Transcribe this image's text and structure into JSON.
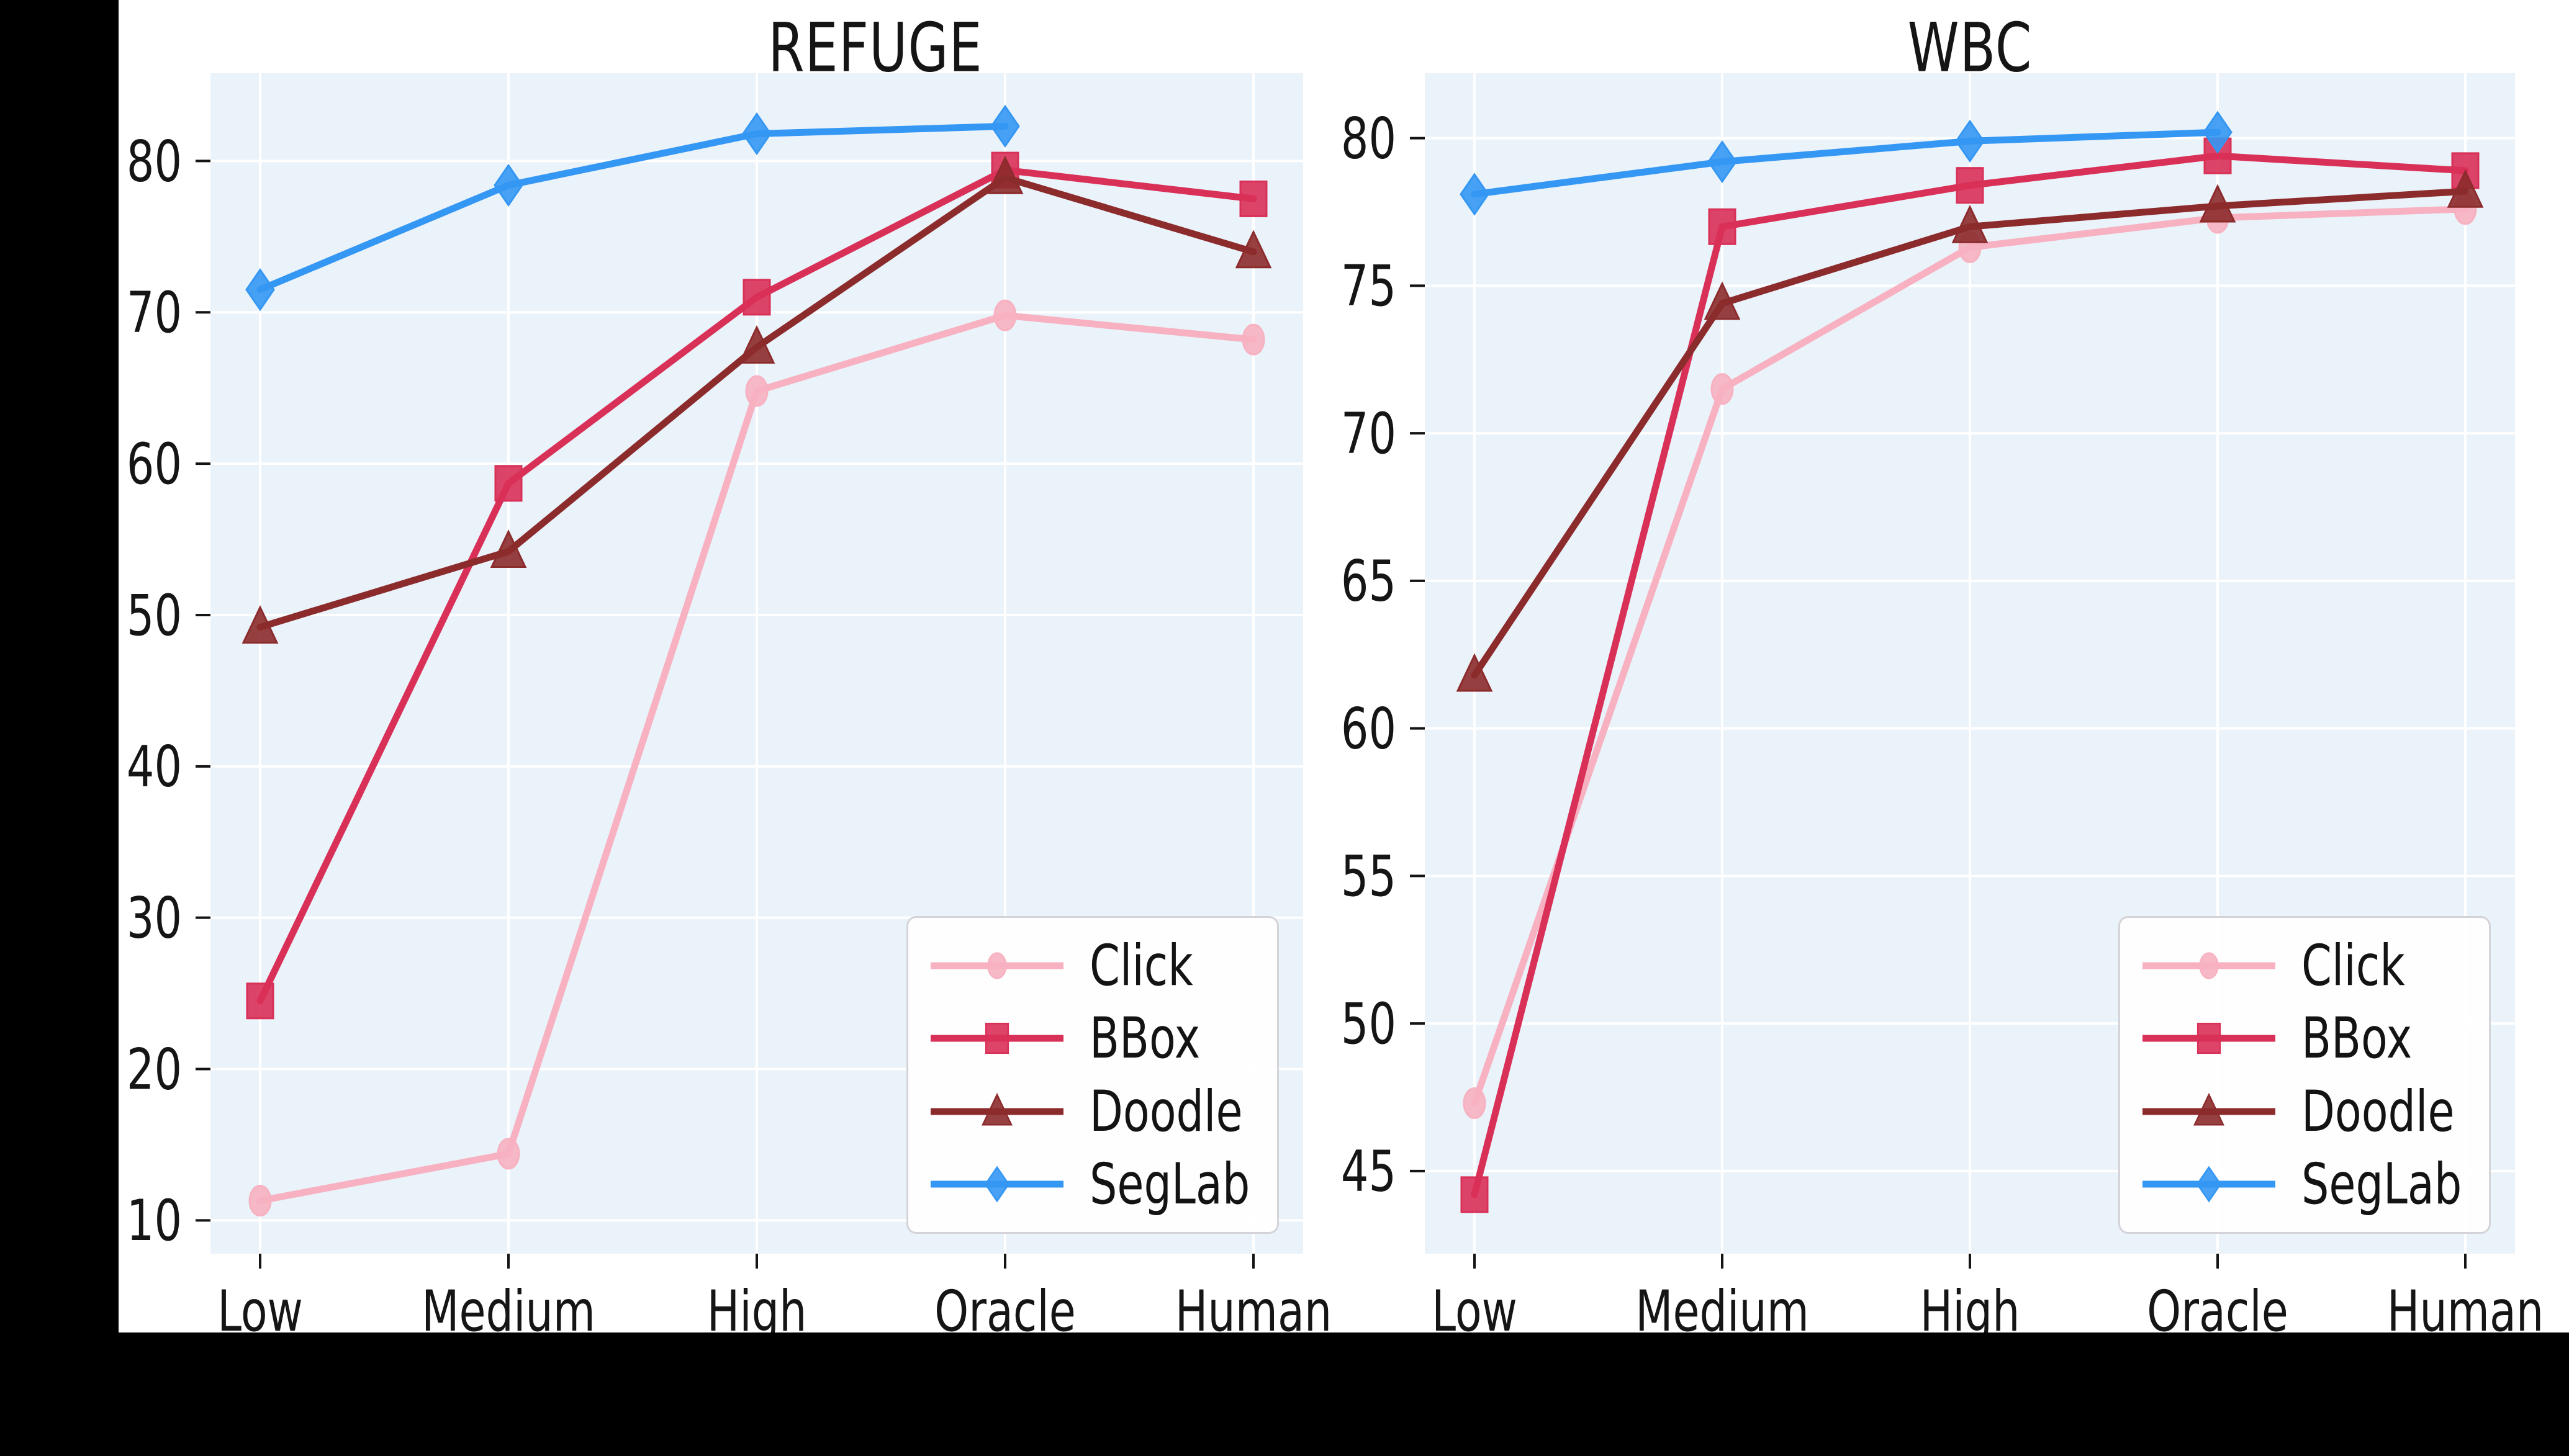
{
  "figure": {
    "canvas_color": "#000000",
    "panel_color": "#ffffff",
    "plot_background": "#EAF2FA",
    "gridline_color": "#ffffff",
    "text_color": "#151515"
  },
  "chart_data": [
    {
      "type": "line",
      "title": "REFUGE",
      "categories": [
        "Low",
        "Medium",
        "High",
        "Oracle",
        "Human"
      ],
      "xlabel": "",
      "ylabel": "",
      "ylim": [
        7.8,
        85.8
      ],
      "yticks": [
        10,
        20,
        30,
        40,
        50,
        60,
        70,
        80
      ],
      "grid": true,
      "legend_position": "lower right",
      "series": [
        {
          "name": "Click",
          "marker": "circle",
          "color": "#F7B1C0",
          "values": [
            11.3,
            14.4,
            64.8,
            69.8,
            68.2
          ]
        },
        {
          "name": "BBox",
          "marker": "square",
          "color": "#D93058",
          "values": [
            24.5,
            58.7,
            71.0,
            79.4,
            77.5
          ]
        },
        {
          "name": "Doodle",
          "marker": "triangle",
          "color": "#8C2B2C",
          "values": [
            49.2,
            54.2,
            67.7,
            78.9,
            74.0
          ]
        },
        {
          "name": "SegLab",
          "marker": "diamond",
          "color": "#3497F3",
          "values": [
            71.5,
            78.4,
            81.8,
            82.3,
            null
          ]
        }
      ]
    },
    {
      "type": "line",
      "title": "WBC",
      "categories": [
        "Low",
        "Medium",
        "High",
        "Oracle",
        "Human"
      ],
      "xlabel": "",
      "ylabel": "",
      "ylim": [
        42.2,
        82.2
      ],
      "yticks": [
        45,
        50,
        55,
        60,
        65,
        70,
        75,
        80
      ],
      "grid": true,
      "legend_position": "lower right",
      "series": [
        {
          "name": "Click",
          "marker": "circle",
          "color": "#F7B1C0",
          "values": [
            47.3,
            71.5,
            76.3,
            77.3,
            77.6
          ]
        },
        {
          "name": "BBox",
          "marker": "square",
          "color": "#D93058",
          "values": [
            44.2,
            77.0,
            78.4,
            79.4,
            78.9
          ]
        },
        {
          "name": "Doodle",
          "marker": "triangle",
          "color": "#8C2B2C",
          "values": [
            61.8,
            74.4,
            77.0,
            77.7,
            78.2
          ]
        },
        {
          "name": "SegLab",
          "marker": "diamond",
          "color": "#3497F3",
          "values": [
            78.1,
            79.2,
            79.9,
            80.2,
            null
          ]
        }
      ]
    }
  ]
}
